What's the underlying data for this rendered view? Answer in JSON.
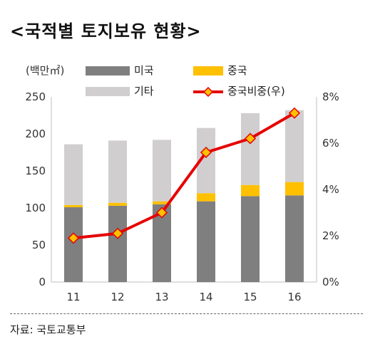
{
  "title": "<국적별 토지보유 현황>",
  "source": "자료: 국토교통부",
  "colors": {
    "us": "#7f7f7f",
    "china": "#ffc000",
    "other": "#d0cece",
    "china_share": "#e60000",
    "marker": "#ffc000"
  },
  "chart_data": {
    "type": "bar",
    "stacked": true,
    "categories": [
      "11",
      "12",
      "13",
      "14",
      "15",
      "16"
    ],
    "series": [
      {
        "name": "미국",
        "values": [
          101,
          103,
          105,
          109,
          116,
          117
        ],
        "axis": "left",
        "kind": "bar",
        "color": "#7f7f7f"
      },
      {
        "name": "중국",
        "values": [
          3,
          4,
          4,
          11,
          15,
          18
        ],
        "axis": "left",
        "kind": "bar",
        "color": "#ffc000"
      },
      {
        "name": "기타",
        "values": [
          82,
          84,
          83,
          88,
          97,
          97
        ],
        "axis": "left",
        "kind": "bar",
        "color": "#d0cece"
      },
      {
        "name": "중국비중(우)",
        "values": [
          1.9,
          2.1,
          3.0,
          5.6,
          6.2,
          7.3
        ],
        "axis": "right",
        "kind": "line",
        "color": "#e60000"
      }
    ],
    "ylabel": "(백만㎡)",
    "ylim": [
      0,
      250
    ],
    "yticks": [
      "0",
      "50",
      "100",
      "150",
      "200",
      "250"
    ],
    "y2lim": [
      0,
      8
    ],
    "y2ticks": [
      "0%",
      "2%",
      "4%",
      "6%",
      "8%"
    ],
    "grid": false,
    "legend_position": "top"
  }
}
